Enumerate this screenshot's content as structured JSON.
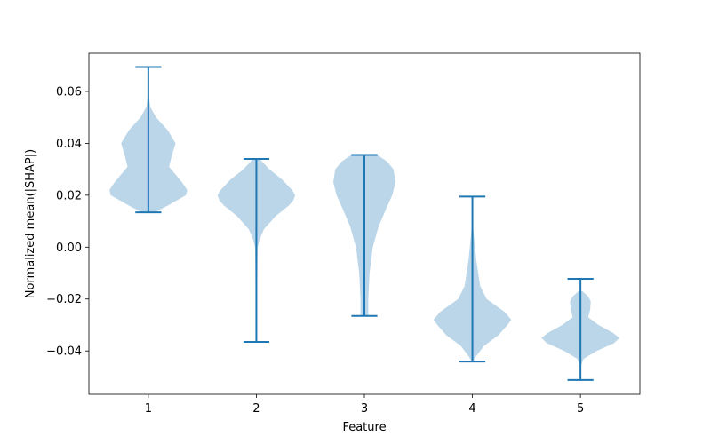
{
  "chart_data": {
    "type": "violin",
    "title": "",
    "xlabel": "Feature",
    "ylabel": "Normalized mean(|SHAP|)",
    "categories": [
      "1",
      "2",
      "3",
      "4",
      "5"
    ],
    "xlim": [
      0.45,
      5.55
    ],
    "ylim": [
      -0.0567,
      0.0747
    ],
    "yticks": [
      -0.04,
      -0.02,
      0.0,
      0.02,
      0.04,
      0.06
    ],
    "ytick_labels": [
      "−0.04",
      "−0.02",
      "0.00",
      "0.02",
      "0.04",
      "0.06"
    ],
    "grid": false,
    "colors": {
      "body": "#1f77b4",
      "body_opacity": 0.3,
      "lines": "#1f77b4"
    },
    "series": [
      {
        "min": 0.0134,
        "max": 0.0694,
        "density": [
          [
            0.0134,
            0.1
          ],
          [
            0.016,
            0.3
          ],
          [
            0.02,
            0.58
          ],
          [
            0.022,
            0.6
          ],
          [
            0.025,
            0.52
          ],
          [
            0.028,
            0.42
          ],
          [
            0.031,
            0.32
          ],
          [
            0.035,
            0.36
          ],
          [
            0.04,
            0.42
          ],
          [
            0.045,
            0.3
          ],
          [
            0.05,
            0.12
          ],
          [
            0.054,
            0.03
          ],
          [
            0.058,
            0.01
          ]
        ]
      },
      {
        "min": -0.0365,
        "max": 0.034,
        "density": [
          [
            -0.036,
            0.0
          ],
          [
            0.0,
            0.02
          ],
          [
            0.003,
            0.05
          ],
          [
            0.007,
            0.12
          ],
          [
            0.012,
            0.3
          ],
          [
            0.016,
            0.5
          ],
          [
            0.018,
            0.57
          ],
          [
            0.02,
            0.6
          ],
          [
            0.022,
            0.55
          ],
          [
            0.026,
            0.4
          ],
          [
            0.03,
            0.2
          ],
          [
            0.034,
            0.05
          ]
        ]
      },
      {
        "min": -0.0265,
        "max": 0.0355,
        "density": [
          [
            -0.0265,
            0.06
          ],
          [
            -0.02,
            0.06
          ],
          [
            -0.01,
            0.08
          ],
          [
            0.0,
            0.13
          ],
          [
            0.008,
            0.22
          ],
          [
            0.015,
            0.34
          ],
          [
            0.02,
            0.43
          ],
          [
            0.025,
            0.48
          ],
          [
            0.03,
            0.45
          ],
          [
            0.033,
            0.35
          ],
          [
            0.0355,
            0.2
          ]
        ]
      },
      {
        "min": -0.0441,
        "max": 0.0195,
        "density": [
          [
            -0.0441,
            0.01
          ],
          [
            -0.042,
            0.06
          ],
          [
            -0.038,
            0.18
          ],
          [
            -0.034,
            0.4
          ],
          [
            -0.03,
            0.54
          ],
          [
            -0.028,
            0.6
          ],
          [
            -0.025,
            0.5
          ],
          [
            -0.02,
            0.22
          ],
          [
            -0.015,
            0.12
          ],
          [
            -0.01,
            0.09
          ],
          [
            -0.005,
            0.06
          ],
          [
            0.0,
            0.04
          ],
          [
            0.005,
            0.02
          ],
          [
            0.01,
            0.005
          ]
        ]
      },
      {
        "min": -0.0512,
        "max": -0.0122,
        "density": [
          [
            -0.046,
            0.0
          ],
          [
            -0.043,
            0.05
          ],
          [
            -0.04,
            0.25
          ],
          [
            -0.037,
            0.52
          ],
          [
            -0.035,
            0.6
          ],
          [
            -0.033,
            0.5
          ],
          [
            -0.03,
            0.28
          ],
          [
            -0.027,
            0.12
          ],
          [
            -0.024,
            0.15
          ],
          [
            -0.021,
            0.16
          ],
          [
            -0.019,
            0.12
          ],
          [
            -0.017,
            0.03
          ]
        ]
      }
    ]
  }
}
